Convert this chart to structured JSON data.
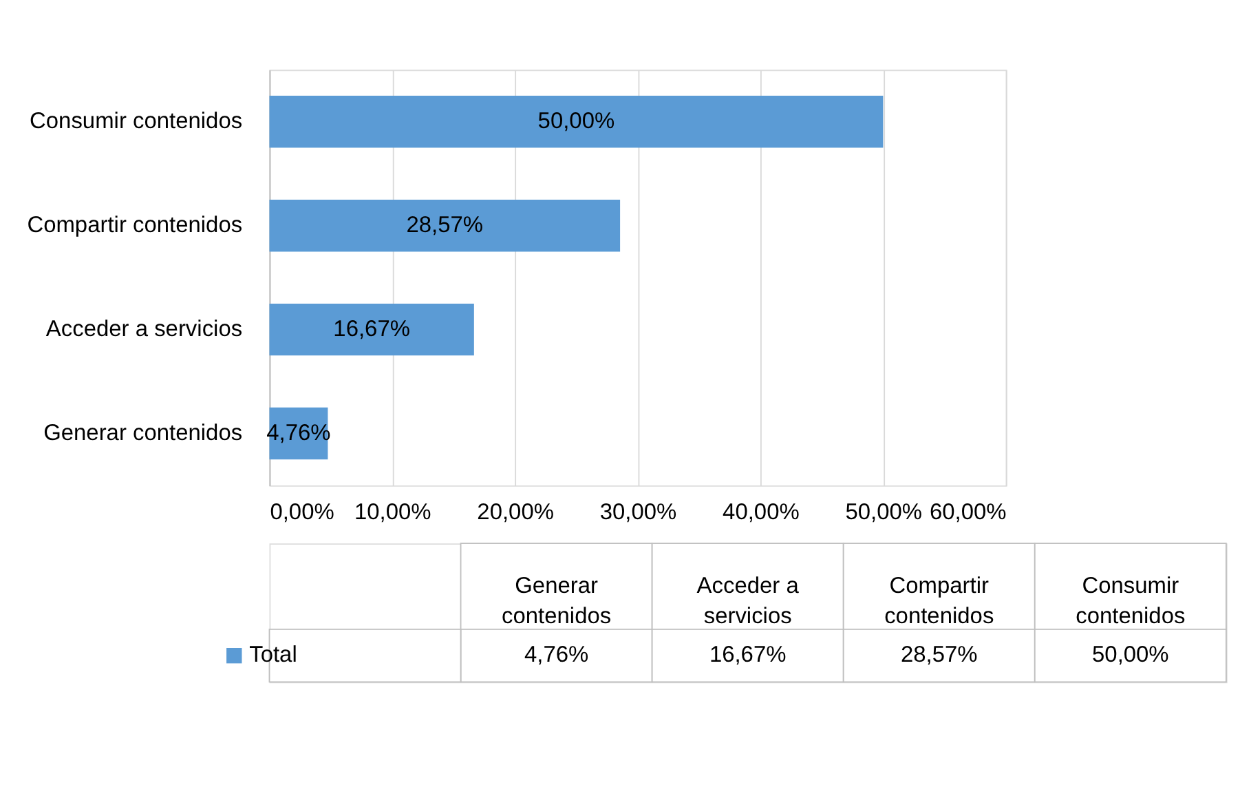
{
  "chart_data": {
    "type": "bar",
    "orientation": "horizontal",
    "categories": [
      "Consumir contenidos",
      "Compartir contenidos",
      "Acceder a servicios",
      "Generar contenidos"
    ],
    "series": [
      {
        "name": "Total",
        "color": "#5b9bd5",
        "values": [
          50.0,
          28.57,
          16.67,
          4.76
        ],
        "value_labels": [
          "50,00%",
          "28,57%",
          "16,67%",
          "4,76%"
        ]
      }
    ],
    "xlim": [
      0,
      60
    ],
    "xticks": [
      {
        "value": 0,
        "label": "0,00%"
      },
      {
        "value": 10,
        "label": "10,00%"
      },
      {
        "value": 20,
        "label": "20,00%"
      },
      {
        "value": 30,
        "label": "30,00%"
      },
      {
        "value": 40,
        "label": "40,00%"
      },
      {
        "value": 50,
        "label": "50,00%"
      },
      {
        "value": 60,
        "label": "60,00%"
      }
    ],
    "grid": "x",
    "legend": "bottom"
  }
}
